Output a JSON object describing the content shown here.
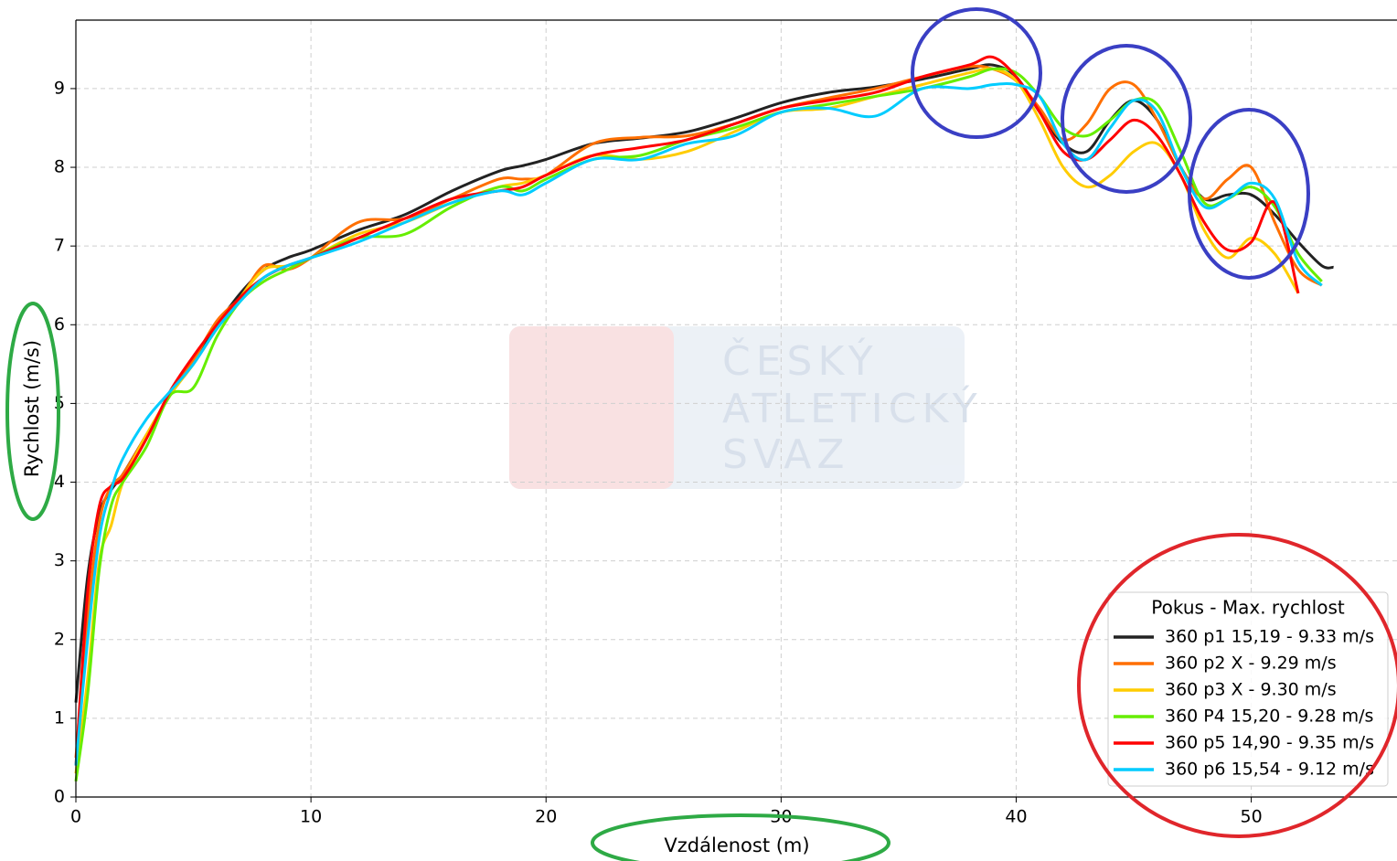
{
  "chart_data": {
    "type": "line",
    "xlabel": "Vzdálenost (m)",
    "ylabel": "Rychlost (m/s)",
    "legend_title": "Pokus - Max. rychlost",
    "legend": "lower right",
    "grid": true,
    "watermark": [
      "ČESKÝ",
      "ATLETICKÝ",
      "SVAZ"
    ],
    "xlim": [
      0,
      56.2
    ],
    "ylim": [
      0,
      9.87
    ],
    "xticks": [
      0,
      10,
      20,
      30,
      40,
      50
    ],
    "yticks": [
      0,
      1,
      2,
      3,
      4,
      5,
      6,
      7,
      8,
      9
    ],
    "x": [
      0,
      0.5,
      1,
      1.5,
      2,
      3,
      4,
      5,
      6,
      7,
      8,
      9,
      10,
      12,
      14,
      16,
      18,
      19,
      20,
      22,
      24,
      26,
      28,
      30,
      32,
      34,
      36,
      38,
      39,
      40,
      41,
      42,
      43,
      44,
      45,
      46,
      47,
      48,
      49,
      50,
      51,
      52,
      53,
      53.5
    ],
    "series": [
      {
        "name": "360 p1 15,19 - 9.33 m/s",
        "color": "#222222",
        "values": [
          1.2,
          2.8,
          3.6,
          3.9,
          4.1,
          4.6,
          5.1,
          5.55,
          6.0,
          6.4,
          6.7,
          6.85,
          6.95,
          7.2,
          7.4,
          7.7,
          7.95,
          8.02,
          8.1,
          8.3,
          8.37,
          8.45,
          8.62,
          8.82,
          8.95,
          9.02,
          9.12,
          9.25,
          9.3,
          9.15,
          8.7,
          8.3,
          8.2,
          8.6,
          8.85,
          8.6,
          8.0,
          7.6,
          7.65,
          7.65,
          7.4,
          7.05,
          6.75,
          6.73
        ]
      },
      {
        "name": "360 p2 X - 9.29 m/s",
        "color": "#ff6f00",
        "values": [
          0.5,
          2.3,
          3.5,
          3.95,
          4.1,
          4.6,
          5.1,
          5.55,
          6.05,
          6.35,
          6.75,
          6.7,
          6.85,
          7.3,
          7.35,
          7.6,
          7.85,
          7.85,
          7.9,
          8.3,
          8.38,
          8.4,
          8.55,
          8.75,
          8.88,
          9.0,
          9.15,
          9.28,
          9.25,
          9.1,
          8.75,
          8.35,
          8.55,
          9.0,
          9.05,
          8.6,
          8.0,
          7.6,
          7.85,
          8.0,
          7.3,
          6.7,
          6.5,
          null
        ]
      },
      {
        "name": "360 p3 X - 9.30 m/s",
        "color": "#ffcc00",
        "values": [
          0.3,
          1.5,
          3.0,
          3.45,
          4.0,
          4.6,
          5.1,
          5.5,
          5.95,
          6.35,
          6.7,
          6.75,
          6.85,
          7.15,
          7.3,
          7.55,
          7.75,
          7.8,
          7.9,
          8.15,
          8.1,
          8.2,
          8.45,
          8.7,
          8.75,
          8.9,
          9.05,
          9.2,
          9.25,
          9.1,
          8.6,
          8.0,
          7.75,
          7.9,
          8.2,
          8.3,
          7.9,
          7.2,
          6.85,
          7.1,
          6.9,
          6.4,
          null,
          null
        ]
      },
      {
        "name": "360 P4 15,20 - 9.28 m/s",
        "color": "#66ee00",
        "values": [
          0.2,
          1.3,
          2.9,
          3.7,
          4.0,
          4.45,
          5.1,
          5.2,
          5.85,
          6.3,
          6.55,
          6.7,
          6.85,
          7.1,
          7.15,
          7.5,
          7.75,
          7.7,
          7.85,
          8.1,
          8.15,
          8.35,
          8.5,
          8.7,
          8.8,
          8.9,
          9.0,
          9.15,
          9.25,
          9.2,
          8.9,
          8.5,
          8.4,
          8.6,
          8.85,
          8.8,
          8.2,
          7.55,
          7.6,
          7.75,
          7.5,
          6.9,
          6.55,
          null
        ]
      },
      {
        "name": "360 p5 14,90 - 9.35 m/s",
        "color": "#ff0000",
        "values": [
          0.4,
          2.6,
          3.7,
          3.95,
          4.05,
          4.55,
          5.15,
          5.6,
          6.0,
          6.35,
          6.6,
          6.75,
          6.85,
          7.1,
          7.35,
          7.6,
          7.7,
          7.75,
          7.9,
          8.15,
          8.25,
          8.35,
          8.55,
          8.75,
          8.85,
          8.95,
          9.15,
          9.3,
          9.4,
          9.15,
          8.7,
          8.2,
          8.1,
          8.35,
          8.6,
          8.4,
          7.9,
          7.3,
          6.95,
          7.05,
          7.55,
          6.4,
          null,
          null
        ]
      },
      {
        "name": "360 p6 15,54 - 9.12 m/s",
        "color": "#00ccff",
        "values": [
          0.4,
          2.0,
          3.3,
          3.9,
          4.3,
          4.8,
          5.15,
          5.5,
          5.95,
          6.3,
          6.6,
          6.75,
          6.85,
          7.05,
          7.3,
          7.55,
          7.7,
          7.65,
          7.8,
          8.1,
          8.1,
          8.3,
          8.4,
          8.7,
          8.75,
          8.65,
          9.0,
          9.0,
          9.05,
          9.05,
          8.9,
          8.3,
          8.1,
          8.5,
          8.85,
          8.7,
          8.0,
          7.5,
          7.6,
          7.8,
          7.6,
          6.8,
          6.5,
          null
        ]
      }
    ]
  }
}
